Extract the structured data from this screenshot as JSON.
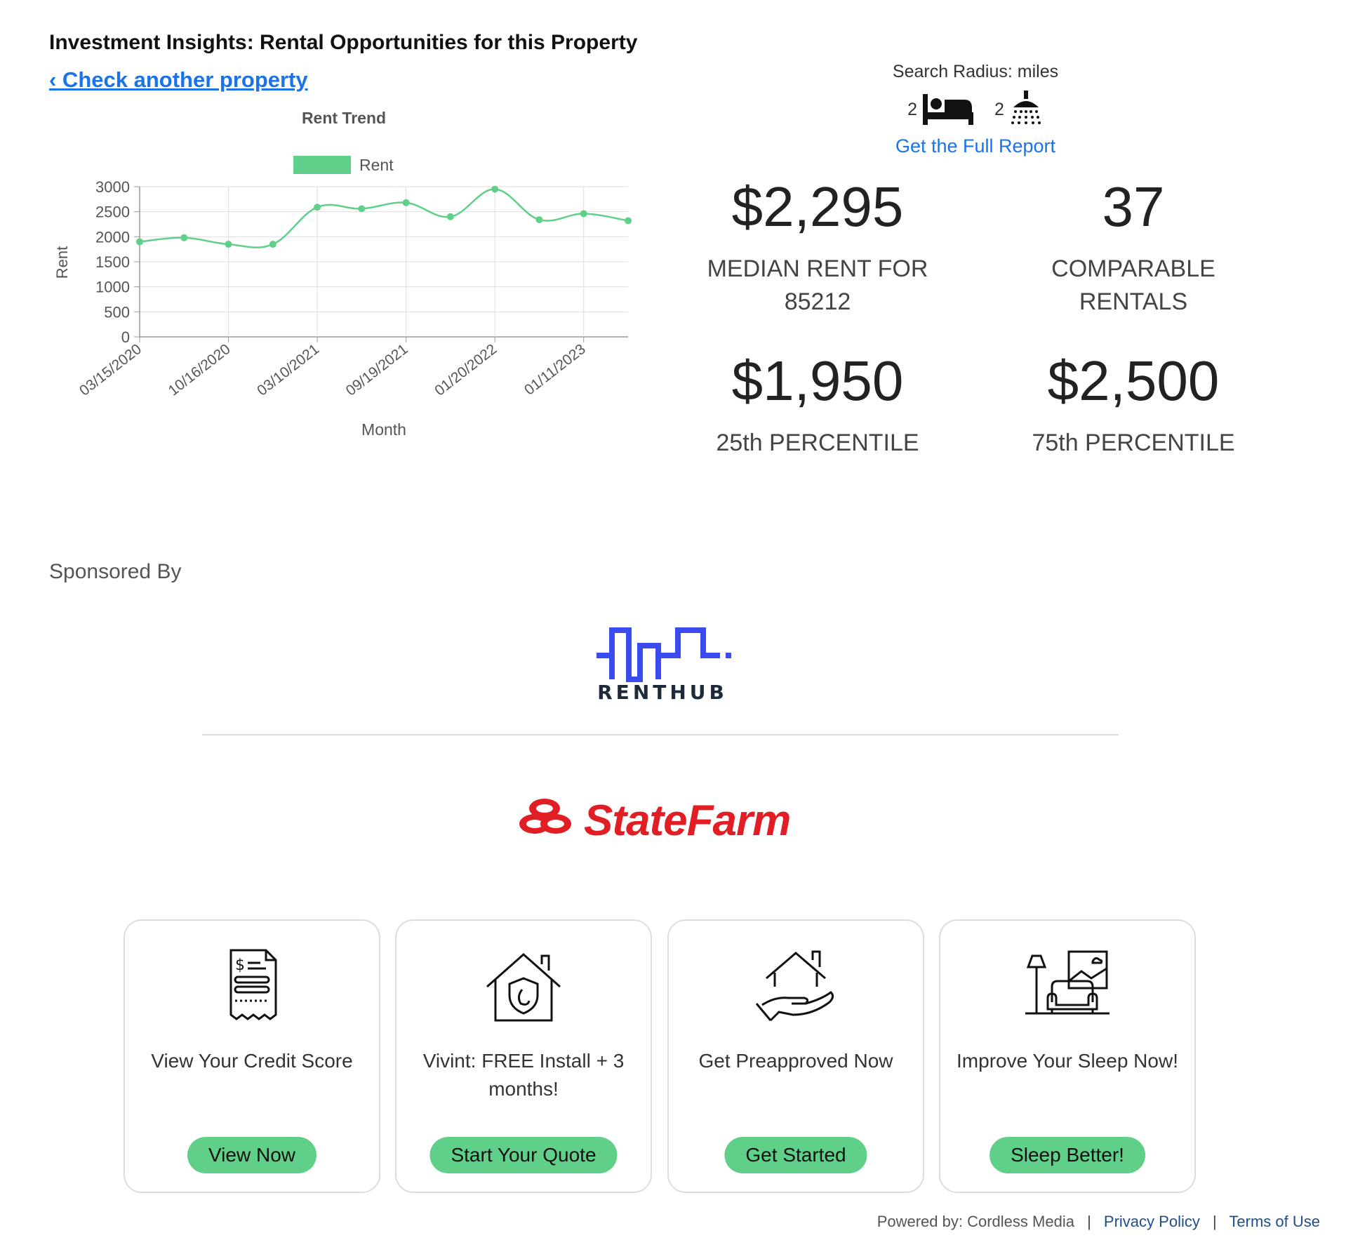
{
  "header": {
    "title": "Investment Insights: Rental Opportunities for this Property",
    "back_link": "‹ Check another property"
  },
  "search": {
    "radius_label": "Search Radius: miles",
    "beds": "2",
    "baths": "2",
    "bed_icon": "bed-icon",
    "bath_icon": "shower-icon",
    "full_report": "Get the Full Report"
  },
  "stats": {
    "median_value": "$2,295",
    "median_label_line1": "MEDIAN RENT FOR",
    "median_label_line2": "85212",
    "comparable_value": "37",
    "comparable_label_line1": "COMPARABLE",
    "comparable_label_line2": "RENTALS",
    "p25_value": "$1,950",
    "p25_label": "25th PERCENTILE",
    "p75_value": "$2,500",
    "p75_label": "75th PERCENTILE"
  },
  "chart_data": {
    "type": "line",
    "title": "Rent Trend",
    "xlabel": "Month",
    "ylabel": "Rent",
    "legend": [
      "Rent"
    ],
    "legend_position": "top",
    "grid": true,
    "ylim": [
      0,
      3000
    ],
    "yticks": [
      0,
      500,
      1000,
      1500,
      2000,
      2500,
      3000
    ],
    "x_tick_labels": [
      "03/15/2020",
      "10/16/2020",
      "03/10/2021",
      "09/19/2021",
      "01/20/2022",
      "01/11/2023"
    ],
    "series": [
      {
        "name": "Rent",
        "color": "#5fcf89",
        "values": [
          1900,
          1980,
          1850,
          1850,
          2590,
          2560,
          2680,
          2400,
          2950,
          2340,
          2460,
          2320
        ]
      }
    ]
  },
  "sponsored": {
    "label": "Sponsored By",
    "renthub_text": "RENTHUB",
    "statefarm_text": "StateFarm"
  },
  "cards": [
    {
      "icon": "credit-report-icon",
      "text": "View Your Credit Score",
      "button": "View Now"
    },
    {
      "icon": "home-security-icon",
      "text": "Vivint: FREE Install + 3 months!",
      "button": "Start Your Quote"
    },
    {
      "icon": "house-in-hand-icon",
      "text": "Get Preapproved Now",
      "button": "Get Started"
    },
    {
      "icon": "living-room-icon",
      "text": "Improve Your Sleep Now!",
      "button": "Sleep Better!"
    }
  ],
  "footer": {
    "powered": "Powered by: Cordless Media",
    "sep": "|",
    "privacy": "Privacy Policy",
    "terms": "Terms of Use"
  },
  "colors": {
    "accent": "#1a73e8",
    "chart_line": "#5fcf89",
    "button": "#5fcf89",
    "renthub_blue": "#3a4cf0",
    "statefarm_red": "#e01e24"
  }
}
